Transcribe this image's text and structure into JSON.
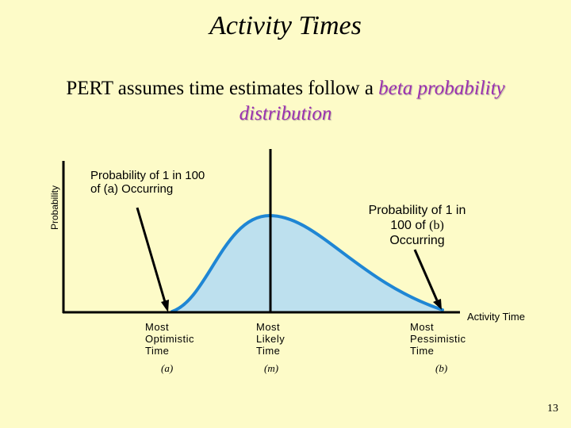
{
  "slide": {
    "title": "Activity Times",
    "subtitle_plain": "PERT assumes time estimates follow a",
    "subtitle_highlight": "beta probability distribution",
    "page_number": "13"
  },
  "diagram": {
    "y_axis_label": "Probability",
    "x_axis_label": "Activity Time",
    "annotation_a": {
      "line1": "Probability of 1 in 100",
      "line2": "of (a) Occurring"
    },
    "annotation_b": {
      "line1": "Probability of 1 in",
      "line2_prefix": "100 of",
      "line2_sym": "(b)",
      "line3": "Occurring"
    },
    "ticks": [
      {
        "lines": [
          "Most",
          "Optimistic",
          "Time"
        ],
        "symbol": "(a)"
      },
      {
        "lines": [
          "Most",
          "Likely",
          "Time"
        ],
        "symbol": "(m)"
      },
      {
        "lines": [
          "Most",
          "Pessimistic",
          "Time"
        ],
        "symbol": "(b)"
      }
    ],
    "colors": {
      "curve_fill": "#bde0ee",
      "curve_stroke": "#1f86d4",
      "background": "#fdfbc8",
      "highlight_text": "#9b30b0"
    }
  }
}
